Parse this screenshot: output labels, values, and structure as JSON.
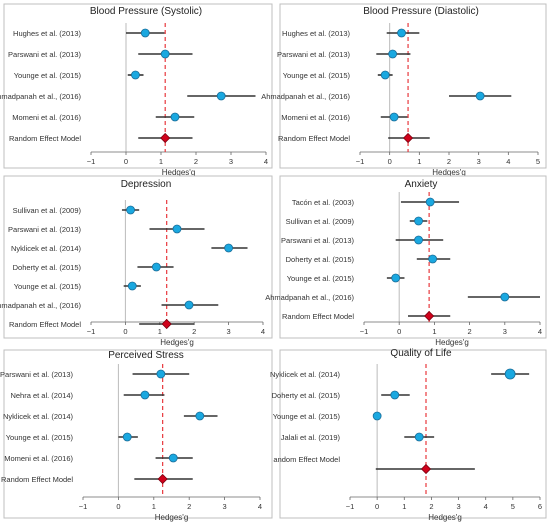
{
  "figure": {
    "colors": {
      "point": "#1aa8e0",
      "point_edge": "#1a6e9a",
      "summary": "#d0021b",
      "summary_edge": "#7a0010",
      "ref_line": "#e8383d",
      "ci": "#333333",
      "zero": "#bbbbbb",
      "border": "#bfbfbf"
    }
  },
  "chart_data": [
    {
      "type": "forest",
      "title": "Blood Pressure (Systolic)",
      "xlabel": "Hedges'g",
      "xlim": [
        -1,
        4
      ],
      "xticks": [
        -1,
        0,
        1,
        2,
        3,
        4
      ],
      "studies": [
        {
          "label": "Hughes et al. (2013)",
          "est": 0.55,
          "lo": 0.0,
          "hi": 1.1
        },
        {
          "label": "Parswani et al. (2013)",
          "est": 1.12,
          "lo": 0.35,
          "hi": 1.9
        },
        {
          "label": "Younge et al. (2015)",
          "est": 0.27,
          "lo": 0.05,
          "hi": 0.5
        },
        {
          "label": "Ahmadpanah et al., (2016)",
          "est": 2.72,
          "lo": 1.75,
          "hi": 3.7
        },
        {
          "label": "Momeni et al. (2016)",
          "est": 1.4,
          "lo": 0.85,
          "hi": 1.95
        }
      ],
      "summary": {
        "label": "Random Effect Model",
        "est": 1.12,
        "lo": 0.35,
        "hi": 1.9
      }
    },
    {
      "type": "forest",
      "title": "Blood Pressure (Diastolic)",
      "xlabel": "Hedges'g",
      "xlim": [
        -1,
        5
      ],
      "xticks": [
        -1,
        0,
        1,
        2,
        3,
        4,
        5
      ],
      "studies": [
        {
          "label": "Hughes et al. (2013)",
          "est": 0.4,
          "lo": -0.1,
          "hi": 1.0
        },
        {
          "label": "Parswani et al. (2013)",
          "est": 0.1,
          "lo": -0.45,
          "hi": 0.7
        },
        {
          "label": "Younge et al. (2015)",
          "est": -0.15,
          "lo": -0.4,
          "hi": 0.1
        },
        {
          "label": "Ahmadpanah et al., (2016)",
          "est": 3.05,
          "lo": 2.0,
          "hi": 4.1
        },
        {
          "label": "Momeni et al. (2016)",
          "est": 0.15,
          "lo": -0.3,
          "hi": 0.6
        }
      ],
      "summary": {
        "label": "Random Effect Model",
        "est": 0.62,
        "lo": -0.05,
        "hi": 1.35
      }
    },
    {
      "type": "forest",
      "title": "Depression",
      "xlabel": "Hedges'g",
      "xlim": [
        -1,
        4
      ],
      "xticks": [
        -1,
        0,
        1,
        2,
        3,
        4
      ],
      "studies": [
        {
          "label": "Sullivan et al. (2009)",
          "est": 0.15,
          "lo": -0.1,
          "hi": 0.4
        },
        {
          "label": "Parswani et al. (2013)",
          "est": 1.5,
          "lo": 0.7,
          "hi": 2.3
        },
        {
          "label": "Nyklicek et al. (2014)",
          "est": 3.0,
          "lo": 2.5,
          "hi": 3.55
        },
        {
          "label": "Doherty et al. (2015)",
          "est": 0.9,
          "lo": 0.35,
          "hi": 1.4
        },
        {
          "label": "Younge et al. (2015)",
          "est": 0.2,
          "lo": -0.05,
          "hi": 0.45
        },
        {
          "label": "Ahmadpanah et al., (2016)",
          "est": 1.85,
          "lo": 1.05,
          "hi": 2.7
        }
      ],
      "summary": {
        "label": "Random Effect Model",
        "est": 1.2,
        "lo": 0.4,
        "hi": 2.0
      }
    },
    {
      "type": "forest",
      "title": "Anxiety",
      "xlabel": "Hedges'g",
      "xlim": [
        -1,
        4
      ],
      "xticks": [
        -1,
        0,
        1,
        2,
        3,
        4
      ],
      "studies": [
        {
          "label": "Tacón et al. (2003)",
          "est": 0.88,
          "lo": 0.05,
          "hi": 1.7
        },
        {
          "label": "Sullivan et al. (2009)",
          "est": 0.55,
          "lo": 0.3,
          "hi": 0.8
        },
        {
          "label": "Parswani et al. (2013)",
          "est": 0.55,
          "lo": -0.1,
          "hi": 1.25
        },
        {
          "label": "Doherty et al. (2015)",
          "est": 0.95,
          "lo": 0.5,
          "hi": 1.45
        },
        {
          "label": "Younge et al. (2015)",
          "est": -0.1,
          "lo": -0.35,
          "hi": 0.15
        },
        {
          "label": "Ahmadpanah et al., (2016)",
          "est": 3.0,
          "lo": 1.95,
          "hi": 4.0
        }
      ],
      "summary": {
        "label": "Random Effect Model",
        "est": 0.85,
        "lo": 0.25,
        "hi": 1.45
      }
    },
    {
      "type": "forest",
      "title": "Perceived Stress",
      "xlabel": "Hedges'g",
      "xlim": [
        -1,
        4
      ],
      "xticks": [
        -1,
        0,
        1,
        2,
        3,
        4
      ],
      "studies": [
        {
          "label": "Parswani et al. (2013)",
          "est": 1.2,
          "lo": 0.4,
          "hi": 2.0
        },
        {
          "label": "Nehra et al. (2014)",
          "est": 0.75,
          "lo": 0.15,
          "hi": 1.3
        },
        {
          "label": "Nyklicek et al. (2014)",
          "est": 2.3,
          "lo": 1.85,
          "hi": 2.8
        },
        {
          "label": "Younge et al. (2015)",
          "est": 0.25,
          "lo": 0.0,
          "hi": 0.55
        },
        {
          "label": "Momeni et al. (2016)",
          "est": 1.55,
          "lo": 1.05,
          "hi": 2.1
        }
      ],
      "summary": {
        "label": "Random Effect Model",
        "est": 1.25,
        "lo": 0.45,
        "hi": 2.1
      }
    },
    {
      "type": "forest",
      "title": "Quality of Life",
      "xlabel": "Hedges'g",
      "xlim": [
        -1,
        6
      ],
      "xticks": [
        -1,
        0,
        1,
        2,
        3,
        4,
        5,
        6
      ],
      "studies": [
        {
          "label": "Nyklicek et al. (2014)",
          "est": 4.9,
          "lo": 4.2,
          "hi": 5.6
        },
        {
          "label": "Doherty et al. (2015)",
          "est": 0.65,
          "lo": 0.15,
          "hi": 1.2
        },
        {
          "label": "Younge et al. (2015)",
          "est": 0.0,
          "lo": -0.1,
          "hi": 0.1
        },
        {
          "label": "Jalali et al. (2019)",
          "est": 1.55,
          "lo": 1.0,
          "hi": 2.1
        },
        {
          "label": "andom Effect Model",
          "est": null,
          "lo": null,
          "hi": null
        }
      ],
      "summary": {
        "label": "",
        "est": 1.8,
        "lo": -0.05,
        "hi": 3.6
      }
    }
  ]
}
